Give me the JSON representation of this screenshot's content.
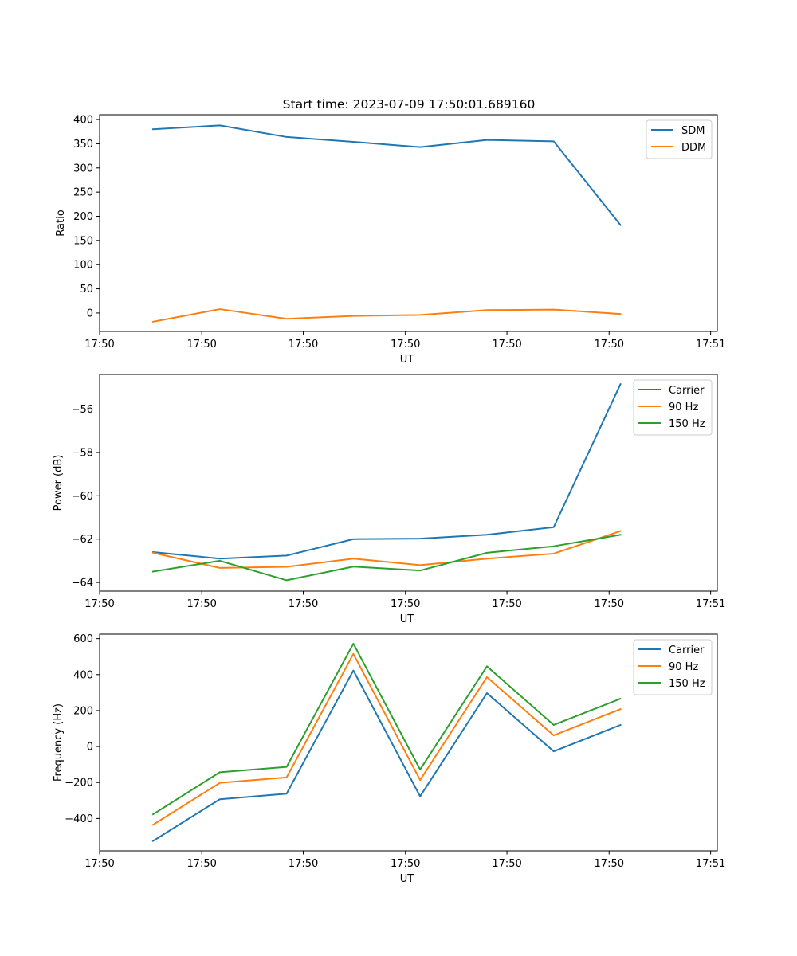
{
  "figure": {
    "title": "Start time: 2023-07-09 17:50:01.689160"
  },
  "colors": {
    "blue": "#1f77b4",
    "orange": "#ff7f0e",
    "green": "#2ca02c"
  },
  "chart_data": [
    {
      "type": "line",
      "title": "Start time: 2023-07-09 17:50:01.689160",
      "xlabel": "UT",
      "ylabel": "Ratio",
      "x": [
        1,
        2,
        3,
        4,
        5,
        6,
        7,
        8
      ],
      "xlim": [
        0.2,
        9.45
      ],
      "xticks": [
        0.2,
        1.73,
        3.25,
        4.78,
        6.3,
        7.83,
        9.35
      ],
      "xtick_labels": [
        "17:50",
        "17:50",
        "17:50",
        "17:50",
        "17:50",
        "17:50",
        "17:51"
      ],
      "ylim": [
        -38,
        410
      ],
      "yticks": [
        0,
        50,
        100,
        150,
        200,
        250,
        300,
        350,
        400
      ],
      "ytick_labels": [
        "0",
        "50",
        "100",
        "150",
        "200",
        "250",
        "300",
        "350",
        "400"
      ],
      "legend": "top-right",
      "series": [
        {
          "name": "SDM",
          "color": "#1f77b4",
          "values": [
            380,
            388,
            364,
            354,
            343,
            358,
            355,
            182
          ]
        },
        {
          "name": "DDM",
          "color": "#ff7f0e",
          "values": [
            -18,
            8,
            -12,
            -6,
            -4,
            6,
            7,
            -2
          ]
        }
      ]
    },
    {
      "type": "line",
      "title": "",
      "xlabel": "UT",
      "ylabel": "Power (dB)",
      "x": [
        1,
        2,
        3,
        4,
        5,
        6,
        7,
        8
      ],
      "xlim": [
        0.2,
        9.45
      ],
      "xticks": [
        0.2,
        1.73,
        3.25,
        4.78,
        6.3,
        7.83,
        9.35
      ],
      "xtick_labels": [
        "17:50",
        "17:50",
        "17:50",
        "17:50",
        "17:50",
        "17:50",
        "17:51"
      ],
      "ylim": [
        -64.4,
        -54.4
      ],
      "yticks": [
        -64,
        -62,
        -60,
        -58,
        -56
      ],
      "ytick_labels": [
        "−64",
        "−62",
        "−60",
        "−58",
        "−56"
      ],
      "legend": "top-right",
      "series": [
        {
          "name": "Carrier",
          "color": "#1f77b4",
          "values": [
            -62.6,
            -62.9,
            -62.76,
            -62.0,
            -61.98,
            -61.8,
            -61.45,
            -54.85
          ]
        },
        {
          "name": "90 Hz",
          "color": "#ff7f0e",
          "values": [
            -62.63,
            -63.33,
            -63.28,
            -62.9,
            -63.2,
            -62.9,
            -62.67,
            -61.63
          ]
        },
        {
          "name": "150 Hz",
          "color": "#2ca02c",
          "values": [
            -63.5,
            -63.0,
            -63.9,
            -63.27,
            -63.45,
            -62.63,
            -62.33,
            -61.8
          ]
        }
      ]
    },
    {
      "type": "line",
      "title": "",
      "xlabel": "UT",
      "ylabel": "Frequency (Hz)",
      "x": [
        1,
        2,
        3,
        4,
        5,
        6,
        7,
        8
      ],
      "xlim": [
        0.2,
        9.45
      ],
      "xticks": [
        0.2,
        1.73,
        3.25,
        4.78,
        6.3,
        7.83,
        9.35
      ],
      "xtick_labels": [
        "17:50",
        "17:50",
        "17:50",
        "17:50",
        "17:50",
        "17:50",
        "17:51"
      ],
      "ylim": [
        -580,
        625
      ],
      "yticks": [
        -400,
        -200,
        0,
        200,
        400,
        600
      ],
      "ytick_labels": [
        "−400",
        "−200",
        "0",
        "200",
        "400",
        "600"
      ],
      "legend": "top-right",
      "series": [
        {
          "name": "Carrier",
          "color": "#1f77b4",
          "values": [
            -525,
            -293,
            -262,
            423,
            -277,
            297,
            -27,
            120
          ]
        },
        {
          "name": "90 Hz",
          "color": "#ff7f0e",
          "values": [
            -435,
            -202,
            -172,
            515,
            -186,
            386,
            62,
            208
          ]
        },
        {
          "name": "150 Hz",
          "color": "#2ca02c",
          "values": [
            -377,
            -143,
            -113,
            572,
            -128,
            446,
            120,
            266
          ]
        }
      ]
    }
  ]
}
